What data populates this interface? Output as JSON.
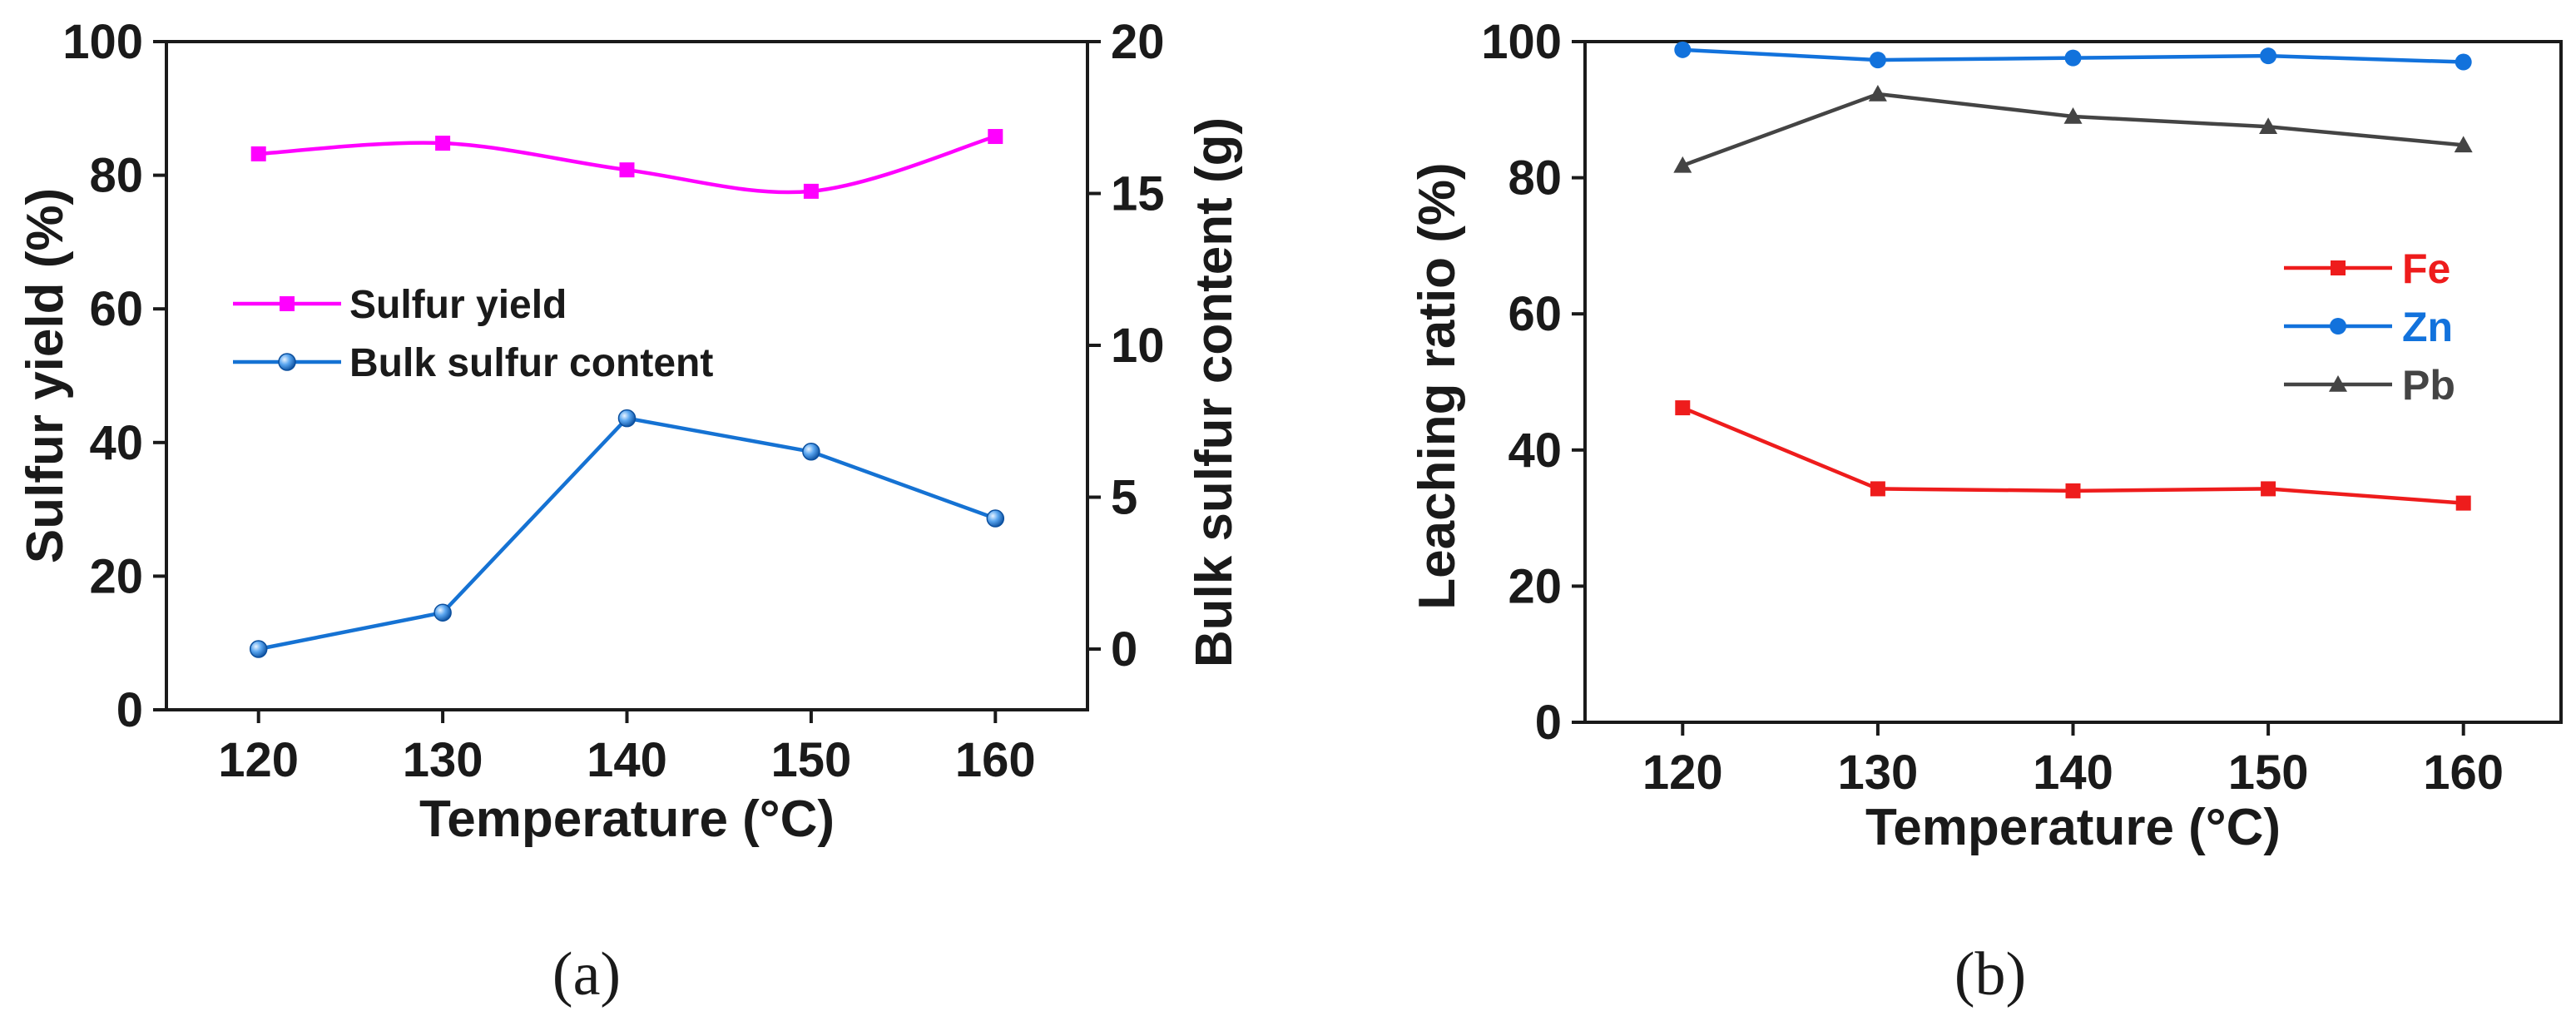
{
  "chart_data": [
    {
      "panel_label": "(a)",
      "type": "line",
      "categories": [
        120,
        130,
        140,
        150,
        160
      ],
      "xlabel": "Temperature (°C)",
      "xlim": [
        115,
        165
      ],
      "ylabel": "Sulfur yield (%)",
      "ylim": [
        0,
        100
      ],
      "yticks": [
        0,
        20,
        40,
        60,
        80,
        100
      ],
      "y2label": "Bulk sulfur content (g)",
      "y2lim": [
        -2,
        20
      ],
      "y2ticks": [
        0,
        5,
        10,
        15,
        20
      ],
      "series": [
        {
          "name": "Sulfur yield",
          "axis": "left",
          "marker": "square",
          "color": "#ff00ff",
          "smooth": true,
          "values": [
            83.2,
            84.8,
            80.8,
            77.6,
            85.8
          ]
        },
        {
          "name": "Bulk sulfur content",
          "axis": "right",
          "marker": "sphere",
          "color": "#1572d3",
          "smooth": false,
          "values": [
            0.0,
            1.2,
            7.6,
            6.5,
            4.3
          ]
        }
      ],
      "legend": "center-left"
    },
    {
      "panel_label": "(b)",
      "type": "line",
      "categories": [
        120,
        130,
        140,
        150,
        160
      ],
      "xlabel": "Temperature (°C)",
      "xlim": [
        115,
        165
      ],
      "ylabel": "Leaching ratio (%)",
      "ylim": [
        0,
        100
      ],
      "yticks": [
        0,
        20,
        40,
        60,
        80,
        100
      ],
      "series": [
        {
          "name": "Fe",
          "marker": "square",
          "color": "#ee1c1c",
          "values": [
            46.2,
            34.3,
            34.0,
            34.3,
            32.2
          ]
        },
        {
          "name": "Zn",
          "marker": "circle",
          "color": "#1272dc",
          "values": [
            98.8,
            97.3,
            97.6,
            97.9,
            97.0
          ]
        },
        {
          "name": "Pb",
          "marker": "triangle",
          "color": "#444444",
          "values": [
            81.8,
            92.3,
            89.0,
            87.5,
            84.8
          ]
        }
      ],
      "legend": "right"
    }
  ]
}
